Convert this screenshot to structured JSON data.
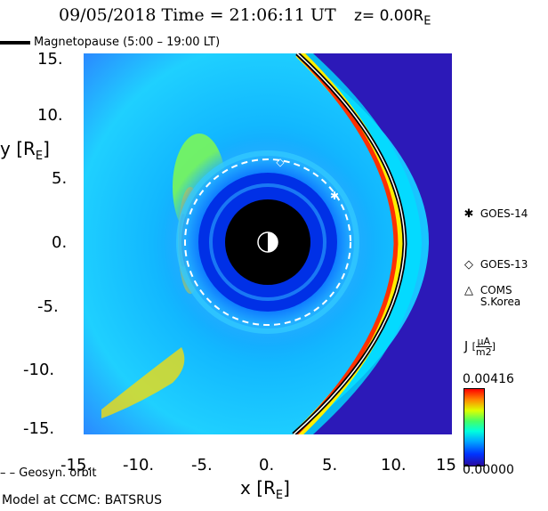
{
  "header": {
    "date_time": "09/05/2018 Time = 21:06:11 UT",
    "z_label": "z= 0.00R",
    "z_sub": "E"
  },
  "legend": {
    "magnetopause": "Magnetopause (5:00 – 19:00 LT)",
    "geosync": "– –  Geosyn. orbit"
  },
  "axes": {
    "ylabel": "y [R",
    "ylabel_sub": "E",
    "ylabel_end": "]",
    "xlabel": "x [R",
    "xlabel_sub": "E",
    "xlabel_end": "]",
    "y_ticks": [
      "15.",
      "10.",
      "5.",
      "0.",
      "-5.",
      "-10.",
      "-15."
    ],
    "x_ticks": [
      "-15.",
      "-10.",
      "-5.",
      "0.",
      "5.",
      "10.",
      "15"
    ]
  },
  "satellites": [
    {
      "symbol": "✱",
      "name": "GOES-14",
      "name2": ""
    },
    {
      "symbol": "◇",
      "name": "GOES-13",
      "name2": ""
    },
    {
      "symbol": "△",
      "name": "COMS",
      "name2": "S.Korea"
    }
  ],
  "colorbar": {
    "label": "J",
    "unit_num": "μA",
    "unit_den": "m2",
    "max": "0.00416",
    "min": "0.00000"
  },
  "footer": {
    "model": "Model at CCMC: BATSRUS"
  },
  "colors": {
    "background": "#1a3fe0",
    "earth": "#000000",
    "geosync": "#ffffff"
  }
}
